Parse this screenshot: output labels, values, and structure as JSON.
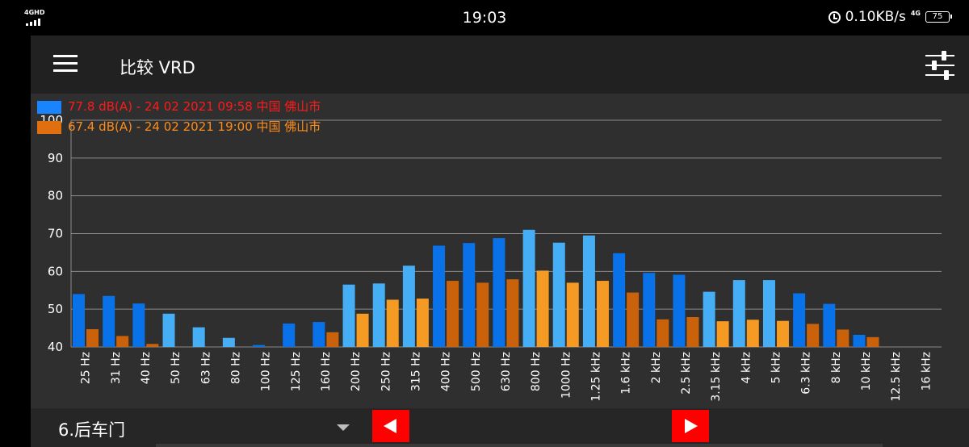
{
  "status_bar": {
    "network": "4GHD",
    "time": "19:03",
    "speed": "0.10KB/s",
    "network2": "4G",
    "battery": "75"
  },
  "toolbar": {
    "title": "比较 VRD"
  },
  "legend": [
    {
      "label": "77.8 dB(A) - 24 02 2021 09:58 中国 佛山市",
      "text_color": "#ff1a1a",
      "swatch_color": "#1a84ff"
    },
    {
      "label": "67.4 dB(A) - 24 02 2021 19:00 中国 佛山市",
      "text_color": "#ff8c1a",
      "swatch_color": "#e0700f"
    }
  ],
  "chart_data": {
    "type": "bar",
    "categories": [
      "25 Hz",
      "31 Hz",
      "40 Hz",
      "50 Hz",
      "63 Hz",
      "80 Hz",
      "100 Hz",
      "125 Hz",
      "160 Hz",
      "200 Hz",
      "250 Hz",
      "315 Hz",
      "400 Hz",
      "500 Hz",
      "630 Hz",
      "800 Hz",
      "1000 Hz",
      "1.25 kHz",
      "1.6 kHz",
      "2 kHz",
      "2.5 kHz",
      "3.15 kHz",
      "4 kHz",
      "5 kHz",
      "6.3 kHz",
      "8 kHz",
      "10 kHz",
      "12.5 kHz",
      "16 kHz"
    ],
    "series": [
      {
        "name": "77.8 dB(A) - 24 02 2021 09:58 中国 佛山市",
        "values": [
          54.0,
          53.5,
          51.5,
          48.8,
          45.2,
          42.4,
          40.5,
          46.2,
          46.6,
          56.5,
          56.8,
          61.5,
          66.8,
          67.5,
          68.8,
          71.0,
          67.6,
          69.5,
          64.8,
          59.6,
          59.1,
          54.6,
          57.7,
          57.7,
          54.2,
          51.4,
          43.2,
          null,
          null
        ],
        "colors": [
          "#0a72e8",
          "#0a72e8",
          "#0a72e8",
          "#45aef5",
          "#45aef5",
          "#45aef5",
          "#0a72e8",
          "#0a72e8",
          "#0a72e8",
          "#45aef5",
          "#45aef5",
          "#45aef5",
          "#0a72e8",
          "#0a72e8",
          "#0a72e8",
          "#45aef5",
          "#45aef5",
          "#45aef5",
          "#0a72e8",
          "#0a72e8",
          "#0a72e8",
          "#45aef5",
          "#45aef5",
          "#45aef5",
          "#0a72e8",
          "#0a72e8",
          "#0a72e8",
          "#45aef5",
          "#45aef5"
        ]
      },
      {
        "name": "67.4 dB(A) - 24 02 2021 19:00 中国 佛山市",
        "values": [
          44.7,
          42.9,
          40.8,
          null,
          null,
          null,
          null,
          null,
          43.9,
          48.8,
          52.5,
          52.8,
          57.5,
          57.0,
          57.9,
          60.2,
          57.0,
          57.5,
          54.4,
          47.3,
          47.9,
          46.8,
          47.2,
          46.9,
          46.1,
          44.6,
          42.6,
          null,
          null
        ],
        "colors": [
          "#c9620b",
          "#c9620b",
          "#c9620b",
          "#f59a22",
          "#f59a22",
          "#f59a22",
          "#c9620b",
          "#c9620b",
          "#c9620b",
          "#f59a22",
          "#f59a22",
          "#f59a22",
          "#c9620b",
          "#c9620b",
          "#c9620b",
          "#f59a22",
          "#f59a22",
          "#f59a22",
          "#c9620b",
          "#c9620b",
          "#c9620b",
          "#f59a22",
          "#f59a22",
          "#f59a22",
          "#c9620b",
          "#c9620b",
          "#c9620b",
          "#f59a22",
          "#f59a22"
        ]
      }
    ],
    "y_ticks": [
      "40",
      "50",
      "60",
      "70",
      "80",
      "90",
      "100"
    ],
    "ylim": [
      40,
      100
    ],
    "grid": true,
    "grid_color": "#8a8a8a",
    "legend_placement": "top-left"
  },
  "bottom_bar": {
    "group_label": "6.后车门"
  }
}
